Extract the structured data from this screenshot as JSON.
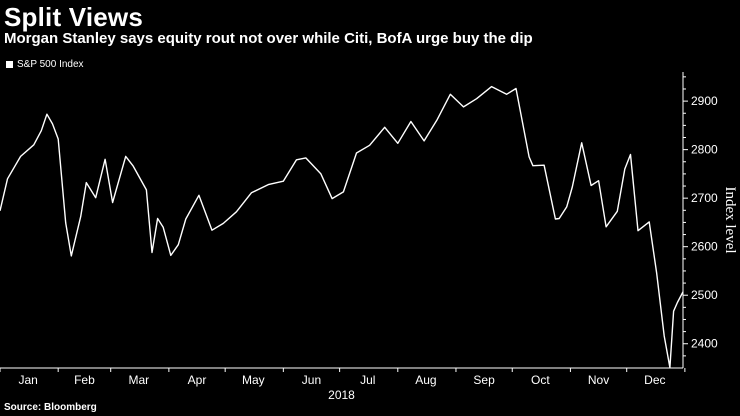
{
  "header": {
    "title": "Split Views",
    "subtitle": "Morgan Stanley says equity rout not over while Citi, BofA urge buy the dip"
  },
  "legend": {
    "label": "S&P 500 Index"
  },
  "footer": {
    "source": "Source: Bloomberg"
  },
  "colors": {
    "background": "#000000",
    "line": "#ffffff",
    "text": "#ffffff"
  },
  "chart_data": {
    "type": "line",
    "title": "Split Views",
    "subtitle": "Morgan Stanley says equity rout not over while Citi, BofA urge buy the dip",
    "xlabel": "2018",
    "ylabel": "Index level",
    "ylim": [
      2350,
      2960
    ],
    "yticks": [
      2400,
      2500,
      2600,
      2700,
      2800,
      2900
    ],
    "xticks": [
      "Jan",
      "Feb",
      "Mar",
      "Apr",
      "May",
      "Jun",
      "Jul",
      "Aug",
      "Sep",
      "Oct",
      "Nov",
      "Dec"
    ],
    "xrange": [
      "2018-01-01",
      "2018-12-31"
    ],
    "legend": "top-left",
    "grid": false,
    "series": [
      {
        "name": "S&P 500 Index",
        "x": [
          "2018-01-01",
          "2018-01-05",
          "2018-01-12",
          "2018-01-19",
          "2018-01-23",
          "2018-01-26",
          "2018-01-29",
          "2018-02-01",
          "2018-02-05",
          "2018-02-08",
          "2018-02-13",
          "2018-02-16",
          "2018-02-21",
          "2018-02-26",
          "2018-03-02",
          "2018-03-09",
          "2018-03-13",
          "2018-03-20",
          "2018-03-23",
          "2018-03-26",
          "2018-03-29",
          "2018-04-02",
          "2018-04-06",
          "2018-04-10",
          "2018-04-17",
          "2018-04-24",
          "2018-04-30",
          "2018-05-07",
          "2018-05-15",
          "2018-05-24",
          "2018-06-01",
          "2018-06-08",
          "2018-06-13",
          "2018-06-21",
          "2018-06-27",
          "2018-07-03",
          "2018-07-10",
          "2018-07-17",
          "2018-07-25",
          "2018-08-01",
          "2018-08-08",
          "2018-08-15",
          "2018-08-22",
          "2018-08-29",
          "2018-09-05",
          "2018-09-12",
          "2018-09-20",
          "2018-09-28",
          "2018-10-03",
          "2018-10-10",
          "2018-10-12",
          "2018-10-18",
          "2018-10-24",
          "2018-10-26",
          "2018-10-30",
          "2018-11-02",
          "2018-11-07",
          "2018-11-12",
          "2018-11-16",
          "2018-11-20",
          "2018-11-26",
          "2018-11-30",
          "2018-12-03",
          "2018-12-07",
          "2018-12-13",
          "2018-12-17",
          "2018-12-21",
          "2018-12-24",
          "2018-12-26",
          "2018-12-28",
          "2018-12-31"
        ],
        "values": [
          2674,
          2740,
          2786,
          2810,
          2839,
          2873,
          2853,
          2822,
          2649,
          2581,
          2662,
          2732,
          2701,
          2780,
          2691,
          2786,
          2766,
          2717,
          2588,
          2658,
          2640,
          2582,
          2604,
          2657,
          2706,
          2634,
          2648,
          2672,
          2711,
          2728,
          2735,
          2779,
          2783,
          2750,
          2699,
          2713,
          2793,
          2809,
          2846,
          2813,
          2858,
          2818,
          2862,
          2914,
          2888,
          2905,
          2930,
          2914,
          2926,
          2785,
          2767,
          2768,
          2657,
          2658,
          2682,
          2723,
          2814,
          2726,
          2736,
          2641,
          2673,
          2760,
          2790,
          2633,
          2651,
          2545,
          2416,
          2351,
          2467,
          2485,
          2507
        ]
      }
    ]
  }
}
